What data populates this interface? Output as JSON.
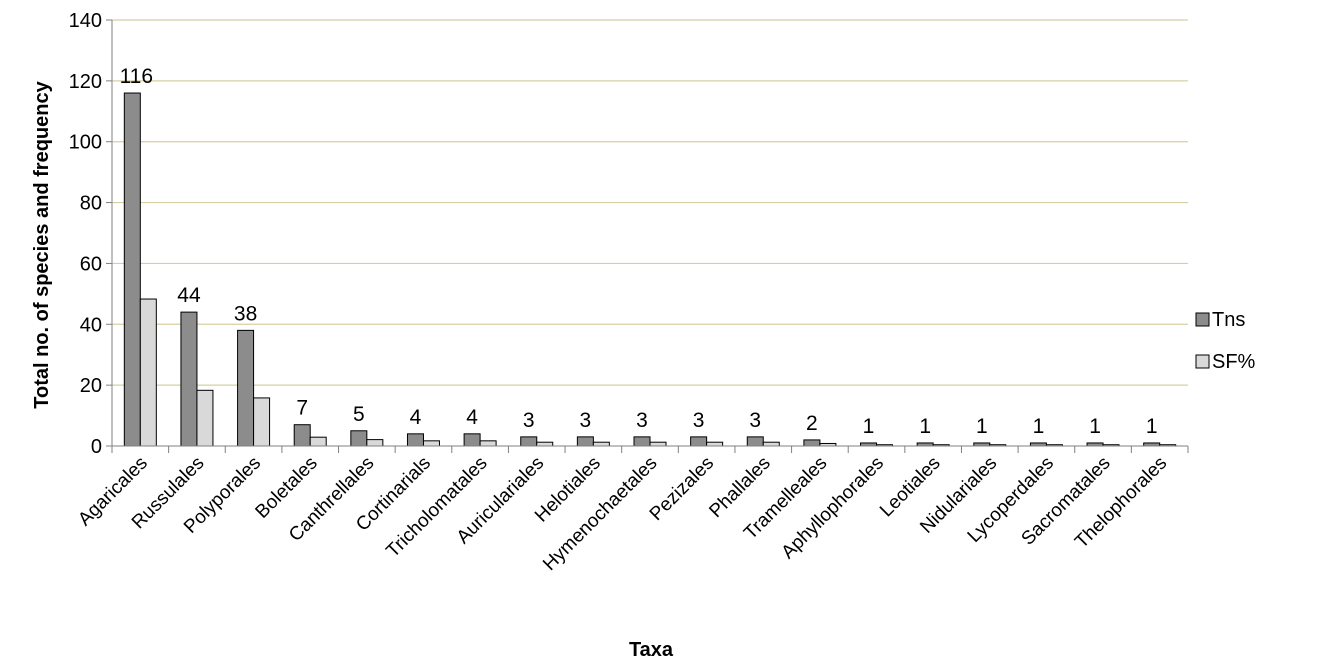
{
  "chart_data": {
    "type": "bar",
    "title": "",
    "xlabel": "Taxa",
    "ylabel": "Total no. of species and frequency",
    "ylim": [
      0,
      140
    ],
    "yticks": [
      0,
      20,
      40,
      60,
      80,
      100,
      120,
      140
    ],
    "grid": true,
    "legend_position": "right",
    "categories": [
      "Agaricales",
      "Russulales",
      "Polyporales",
      "Boletales",
      "Canthrellales",
      "Cortinarials",
      "Tricholomatales",
      "Auriculariales",
      "Helotiales",
      "Hymenochaetales",
      "Pezizales",
      "Phallales",
      "Tramelleales",
      "Aphyllophorales",
      "Leotiales",
      "Nidulariales",
      "Lycoperdales",
      "Sacromatales",
      "Thelophorales"
    ],
    "series": [
      {
        "name": "Tns",
        "color": "#8c8c8c",
        "values": [
          116,
          44,
          38,
          7,
          5,
          4,
          4,
          3,
          3,
          3,
          3,
          3,
          2,
          1,
          1,
          1,
          1,
          1,
          1
        ]
      },
      {
        "name": "SF%",
        "color": "#d9d9d9",
        "values": [
          48.3,
          18.3,
          15.8,
          2.9,
          2.1,
          1.7,
          1.7,
          1.25,
          1.25,
          1.25,
          1.25,
          1.25,
          0.83,
          0.42,
          0.42,
          0.42,
          0.42,
          0.42,
          0.42
        ]
      }
    ],
    "data_labels": [
      "116",
      "44",
      "38",
      "7",
      "5",
      "4",
      "4",
      "3",
      "3",
      "3",
      "3",
      "3",
      "2",
      "1",
      "1",
      "1",
      "1",
      "1",
      "1"
    ],
    "colors": {
      "grid": "#d6cfa4",
      "axis": "#808080",
      "bar_stroke": "#000000"
    }
  }
}
